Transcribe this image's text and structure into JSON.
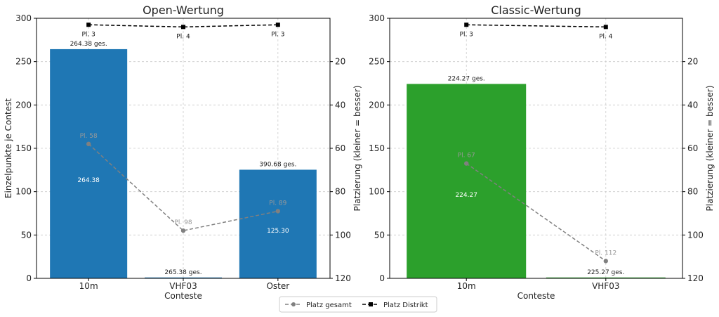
{
  "chart_data": [
    {
      "type": "bar",
      "title": "Open-Wertung",
      "xlabel": "Conteste",
      "ylabel": "Einzelpunkte je Contest",
      "ylabel_right": "Platzierung (kleiner = besser)",
      "categories": [
        "10m",
        "VHF03",
        "Oster"
      ],
      "values": [
        264.38,
        1.0,
        125.3
      ],
      "bar_color": "#1f77b4",
      "ylim": [
        0,
        300
      ],
      "yticks": [
        0,
        50,
        100,
        150,
        200,
        250,
        300
      ],
      "y2lim": [
        120,
        0
      ],
      "y2ticks": [
        20,
        40,
        60,
        80,
        100,
        120
      ],
      "bar_inside_labels": [
        "264.38",
        "",
        "125.30"
      ],
      "total_labels": [
        "264.38 ges.",
        "265.38 ges.",
        "390.68 ges."
      ],
      "place_total": [
        58,
        98,
        89
      ],
      "place_total_labels": [
        "Pl. 58",
        "Pl. 98",
        "Pl. 89"
      ],
      "place_district": [
        3,
        4,
        3
      ],
      "place_district_labels": [
        "Pl. 3",
        "Pl. 4",
        "Pl. 3"
      ]
    },
    {
      "type": "bar",
      "title": "Classic-Wertung",
      "xlabel": "Conteste",
      "ylabel": "",
      "ylabel_right": "Platzierung (kleiner = besser)",
      "categories": [
        "10m",
        "VHF03"
      ],
      "values": [
        224.27,
        1.0
      ],
      "bar_color": "#2ca02c",
      "ylim": [
        0,
        300
      ],
      "yticks": [
        0,
        50,
        100,
        150,
        200,
        250,
        300
      ],
      "y2lim": [
        120,
        0
      ],
      "y2ticks": [
        20,
        40,
        60,
        80,
        100,
        120
      ],
      "bar_inside_labels": [
        "224.27",
        ""
      ],
      "total_labels": [
        "224.27 ges.",
        "225.27 ges."
      ],
      "place_total": [
        67,
        112
      ],
      "place_total_labels": [
        "Pl. 67",
        "Pl. 112"
      ],
      "place_district": [
        3,
        4
      ],
      "place_district_labels": [
        "Pl. 3",
        "Pl. 4"
      ]
    }
  ],
  "legend": {
    "items": [
      {
        "label": "Platz gesamt",
        "color": "#808080",
        "marker": "circle",
        "style": "dashed"
      },
      {
        "label": "Platz Distrikt",
        "color": "#000000",
        "marker": "square",
        "style": "dashed"
      }
    ]
  }
}
